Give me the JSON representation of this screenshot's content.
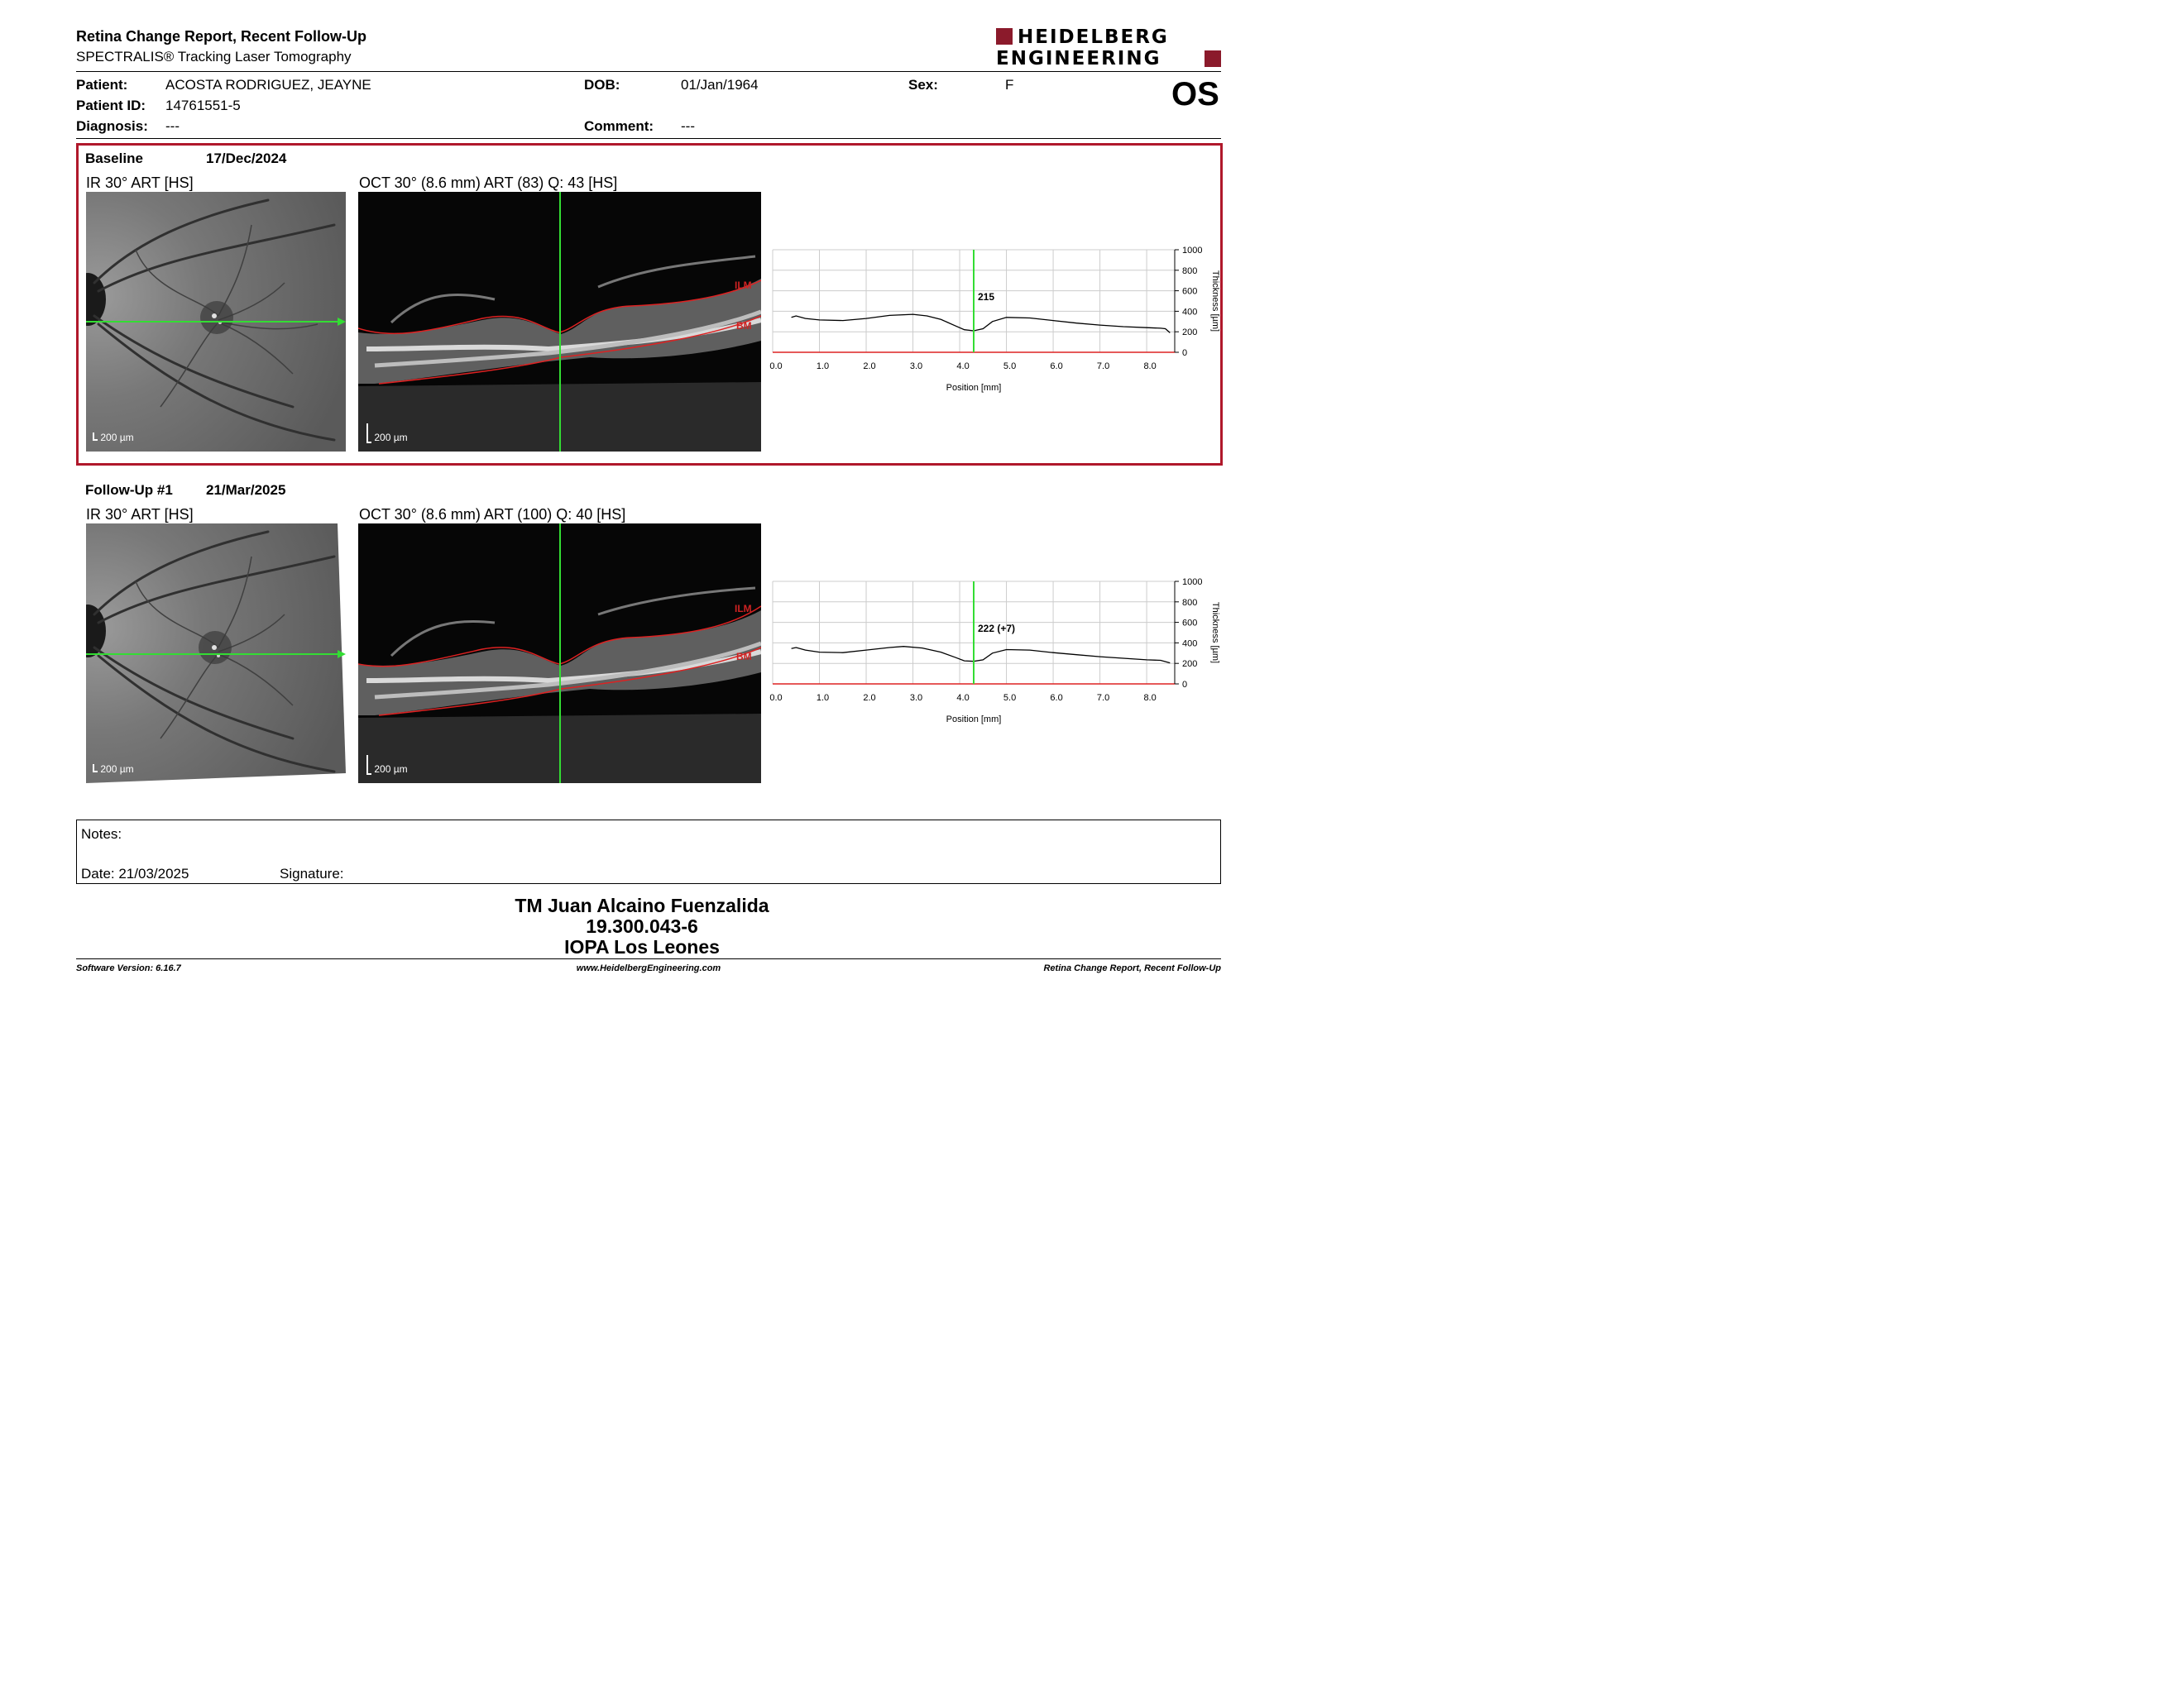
{
  "header": {
    "title": "Retina Change Report, Recent Follow-Up",
    "subtitle": "SPECTRALIS® Tracking Laser Tomography",
    "logo_line1": "HEIDELBERG",
    "logo_line2": "ENGINEERING",
    "brand_color": "#8b1a2b"
  },
  "patient": {
    "patient_label": "Patient:",
    "patient_value": "ACOSTA RODRIGUEZ, JEAYNE",
    "id_label": "Patient ID:",
    "id_value": "14761551-5",
    "diagnosis_label": "Diagnosis:",
    "diagnosis_value": "---",
    "dob_label": "DOB:",
    "dob_value": "01/Jan/1964",
    "comment_label": "Comment:",
    "comment_value": "---",
    "sex_label": "Sex:",
    "sex_value": "F",
    "eye": "OS"
  },
  "baseline": {
    "label": "Baseline",
    "date": "17/Dec/2024",
    "ir_title": "IR 30° ART [HS]",
    "oct_title": "OCT 30° (8.6 mm) ART (83) Q: 43 [HS]",
    "scale": "200 µm",
    "ilm": "ILM",
    "bm": "BM"
  },
  "followup": {
    "label": "Follow-Up #1",
    "date": "21/Mar/2025",
    "ir_title": "IR 30° ART [HS]",
    "oct_title": "OCT 30° (8.6 mm) ART (100) Q: 40 [HS]",
    "scale": "200 µm",
    "ilm": "ILM",
    "bm": "BM"
  },
  "chart_data": [
    {
      "type": "line",
      "xlabel": "Position [mm]",
      "ylabel": "Thickness [µm]",
      "xlim": [
        0,
        8.6
      ],
      "ylim": [
        0,
        1000
      ],
      "x_ticks": [
        "0.0",
        "1.0",
        "2.0",
        "3.0",
        "4.0",
        "5.0",
        "6.0",
        "7.0",
        "8.0"
      ],
      "y_ticks": [
        "0",
        "200",
        "400",
        "600",
        "800",
        "1000"
      ],
      "grid": true,
      "marker_x": 4.3,
      "marker_label": "215",
      "series": [
        {
          "x": [
            0.4,
            0.5,
            0.7,
            1.0,
            1.5,
            2.0,
            2.5,
            3.0,
            3.3,
            3.6,
            3.9,
            4.1,
            4.3,
            4.5,
            4.7,
            5.0,
            5.5,
            6.0,
            6.5,
            7.0,
            7.5,
            8.0,
            8.3,
            8.4,
            8.5
          ],
          "y": [
            340,
            355,
            330,
            315,
            310,
            330,
            360,
            370,
            355,
            320,
            260,
            220,
            210,
            230,
            300,
            340,
            335,
            310,
            285,
            265,
            250,
            240,
            235,
            230,
            190
          ]
        }
      ]
    },
    {
      "type": "line",
      "xlabel": "Position [mm]",
      "ylabel": "Thickness [µm]",
      "xlim": [
        0,
        8.6
      ],
      "ylim": [
        0,
        1000
      ],
      "x_ticks": [
        "0.0",
        "1.0",
        "2.0",
        "3.0",
        "4.0",
        "5.0",
        "6.0",
        "7.0",
        "8.0"
      ],
      "y_ticks": [
        "0",
        "200",
        "400",
        "600",
        "800",
        "1000"
      ],
      "grid": true,
      "marker_x": 4.3,
      "marker_label": "222 (+7)",
      "series": [
        {
          "x": [
            0.4,
            0.5,
            0.7,
            1.0,
            1.5,
            2.0,
            2.5,
            2.8,
            3.2,
            3.6,
            3.9,
            4.1,
            4.3,
            4.5,
            4.7,
            5.0,
            5.5,
            6.0,
            6.5,
            7.0,
            7.5,
            8.0,
            8.3,
            8.5
          ],
          "y": [
            345,
            355,
            330,
            310,
            305,
            330,
            355,
            365,
            350,
            310,
            260,
            225,
            220,
            235,
            300,
            335,
            330,
            305,
            285,
            265,
            250,
            235,
            230,
            205
          ]
        }
      ]
    }
  ],
  "notes": {
    "notes_label": "Notes:",
    "date_text": "Date: 21/03/2025",
    "signature_label": "Signature:"
  },
  "footer_block": {
    "line1": "TM Juan Alcaino Fuenzalida",
    "line2": "19.300.043-6",
    "line3": "IOPA Los Leones"
  },
  "footer": {
    "software": "Software Version: 6.16.7",
    "website": "www.HeidelbergEngineering.com",
    "report_name": "Retina Change Report, Recent Follow-Up"
  }
}
